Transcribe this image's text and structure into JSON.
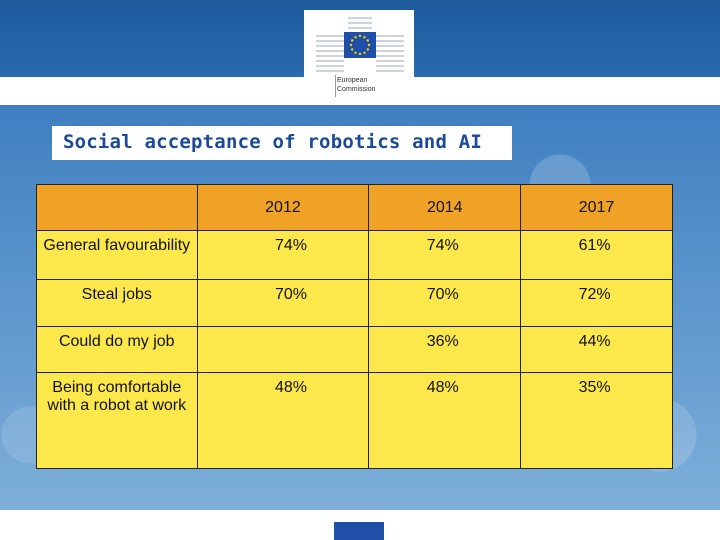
{
  "header": {
    "logo": {
      "line1": "European",
      "line2": "Commission"
    }
  },
  "slide": {
    "title": "Social acceptance of robotics and AI"
  },
  "table": {
    "columns": [
      "",
      "2012",
      "2014",
      "2017"
    ],
    "rows": [
      {
        "label": "General favourability",
        "values": [
          "74%",
          "74%",
          "61%"
        ]
      },
      {
        "label": "Steal jobs",
        "values": [
          "70%",
          "70%",
          "72%"
        ]
      },
      {
        "label": "Could do my job",
        "values": [
          "",
          "36%",
          "44%"
        ]
      },
      {
        "label": "Being comfortable with a robot at work",
        "values": [
          "48%",
          "48%",
          "35%"
        ]
      }
    ]
  },
  "colors": {
    "header_band": "#2a6aae",
    "header_cells": "#f0a227",
    "body_cells": "#fce84a",
    "title_text": "#1b4a9a",
    "footer_tab": "#1f4fa6"
  }
}
